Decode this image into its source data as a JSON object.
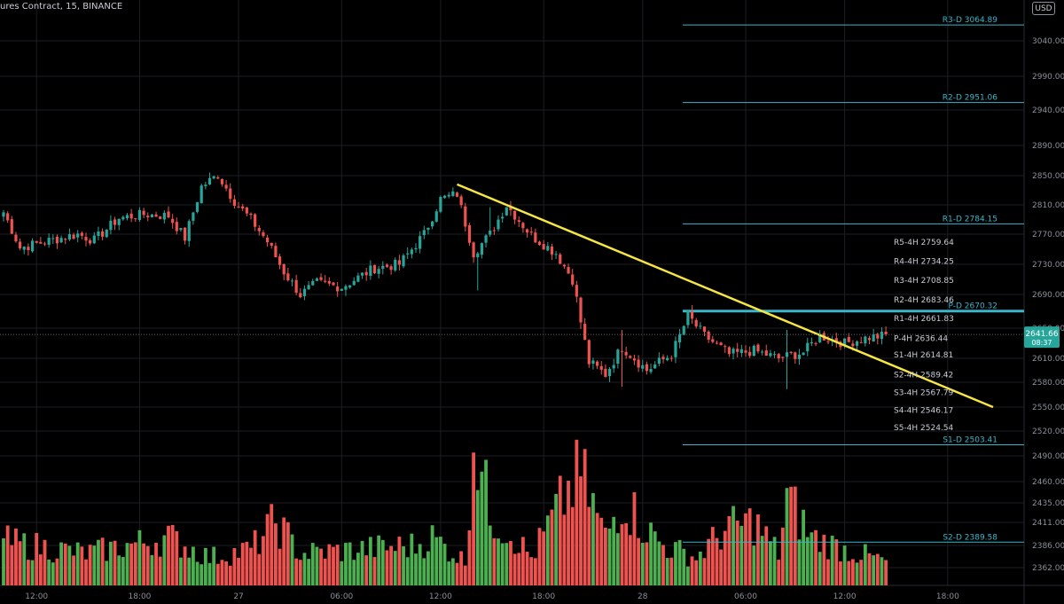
{
  "header": {
    "symbol_text": "ures Contract, 15, BINANCE",
    "currency": "USD"
  },
  "colors": {
    "background": "#000000",
    "up": "#26a69a",
    "down": "#ef5350",
    "volume_up": "#4caf50",
    "volume_down": "#ef5350",
    "level_line": "#3bb5c9",
    "level_label": "#3bb5c9",
    "pivot_text": "#c9ccd3",
    "trendline": "#f5e642",
    "price_badge": "#26a69a",
    "axis_text": "#8a8f98",
    "grid": "#1c1e24"
  },
  "price_badge": {
    "price": "2641.66",
    "countdown": "08:37"
  },
  "chart_data": {
    "type": "candlestick",
    "title": "",
    "x_axis": {
      "tick_labels": [
        "12:00",
        "18:00",
        "27",
        "06:00",
        "12:00",
        "18:00",
        "28",
        "06:00",
        "12:00",
        "18:00"
      ]
    },
    "y_axis": {
      "tick_labels": [
        "3040.00",
        "2990.00",
        "2940.00",
        "2890.00",
        "2850.00",
        "2810.00",
        "2770.00",
        "2730.00",
        "2690.00",
        "2650.00",
        "2610.00",
        "2580.00",
        "2550.00",
        "2520.00",
        "2490.00",
        "2460.00",
        "2435.00",
        "2411.00",
        "2386.00",
        "2362.00"
      ]
    },
    "grid": true,
    "daily_levels": [
      {
        "label": "R3-D 3064.89",
        "value": 3064.89
      },
      {
        "label": "R2-D 2951.06",
        "value": 2951.06
      },
      {
        "label": "R1-D 2784.15",
        "value": 2784.15
      },
      {
        "label": "P-D 2670.32",
        "value": 2670.32
      },
      {
        "label": "S1-D 2503.41",
        "value": 2503.41
      },
      {
        "label": "S2-D 2389.58",
        "value": 2389.58
      }
    ],
    "pivots_4h": [
      {
        "label": "R5-4H 2759.64",
        "value": 2759.64
      },
      {
        "label": "R4-4H 2734.25",
        "value": 2734.25
      },
      {
        "label": "R3-4H 2708.85",
        "value": 2708.85
      },
      {
        "label": "R2-4H 2683.46",
        "value": 2683.46
      },
      {
        "label": "R1-4H 2661.83",
        "value": 2661.83
      },
      {
        "label": "P-4H 2636.44",
        "value": 2636.44
      },
      {
        "label": "S1-4H 2614.81",
        "value": 2614.81
      },
      {
        "label": "S2-4H 2589.42",
        "value": 2589.42
      },
      {
        "label": "S3-4H 2567.79",
        "value": 2567.79
      },
      {
        "label": "S4-4H 2546.17",
        "value": 2546.17
      },
      {
        "label": "S5-4H 2524.54",
        "value": 2524.54
      }
    ],
    "last_price": 2641.66,
    "trendline": {
      "start": {
        "bar": 110,
        "price": 2838
      },
      "end": {
        "bar": 240,
        "price": 2550
      }
    },
    "price_anchors": [
      [
        0,
        2800
      ],
      [
        4,
        2752
      ],
      [
        10,
        2760
      ],
      [
        18,
        2770
      ],
      [
        22,
        2762
      ],
      [
        28,
        2792
      ],
      [
        34,
        2797
      ],
      [
        40,
        2795
      ],
      [
        44,
        2765
      ],
      [
        48,
        2835
      ],
      [
        52,
        2851
      ],
      [
        56,
        2815
      ],
      [
        60,
        2790
      ],
      [
        64,
        2760
      ],
      [
        68,
        2720
      ],
      [
        72,
        2690
      ],
      [
        76,
        2705
      ],
      [
        82,
        2700
      ],
      [
        90,
        2725
      ],
      [
        96,
        2730
      ],
      [
        102,
        2770
      ],
      [
        106,
        2818
      ],
      [
        110,
        2825
      ],
      [
        114,
        2745
      ],
      [
        118,
        2770
      ],
      [
        122,
        2810
      ],
      [
        128,
        2768
      ],
      [
        134,
        2745
      ],
      [
        138,
        2710
      ],
      [
        142,
        2605
      ],
      [
        146,
        2590
      ],
      [
        150,
        2625
      ],
      [
        156,
        2595
      ],
      [
        162,
        2615
      ],
      [
        166,
        2665
      ],
      [
        170,
        2640
      ],
      [
        176,
        2615
      ],
      [
        182,
        2620
      ],
      [
        188,
        2610
      ],
      [
        194,
        2618
      ],
      [
        198,
        2640
      ],
      [
        204,
        2630
      ],
      [
        210,
        2638
      ],
      [
        214,
        2640
      ]
    ],
    "volume_profile": [
      [
        0,
        55
      ],
      [
        20,
        40
      ],
      [
        40,
        60
      ],
      [
        50,
        35
      ],
      [
        60,
        45
      ],
      [
        66,
        80
      ],
      [
        72,
        40
      ],
      [
        100,
        50
      ],
      [
        104,
        60
      ],
      [
        108,
        45
      ],
      [
        112,
        30
      ],
      [
        114,
        190
      ],
      [
        118,
        90
      ],
      [
        124,
        60
      ],
      [
        128,
        35
      ],
      [
        136,
        110
      ],
      [
        140,
        140
      ],
      [
        146,
        60
      ],
      [
        150,
        110
      ],
      [
        156,
        70
      ],
      [
        160,
        50
      ],
      [
        168,
        35
      ],
      [
        175,
        70
      ],
      [
        182,
        80
      ],
      [
        188,
        40
      ],
      [
        190,
        110
      ],
      [
        196,
        60
      ],
      [
        204,
        45
      ],
      [
        214,
        30
      ]
    ]
  }
}
